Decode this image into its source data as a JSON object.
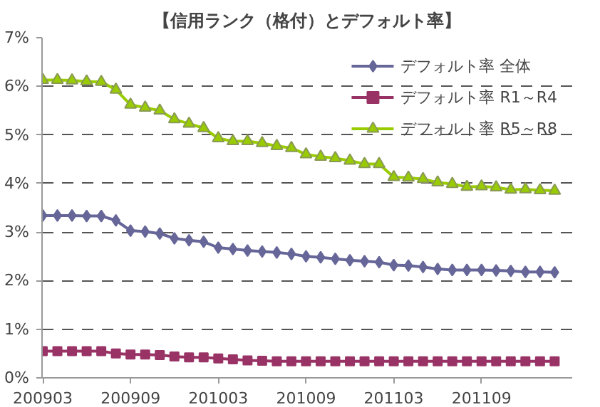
{
  "chart_data": {
    "type": "line",
    "title": "【信用ランク（格付）とデフォルト率】",
    "categories": [
      "200903",
      null,
      null,
      null,
      null,
      null,
      "200909",
      null,
      null,
      null,
      null,
      null,
      "201003",
      null,
      null,
      null,
      null,
      null,
      "201009",
      null,
      null,
      null,
      null,
      null,
      "201103",
      null,
      null,
      null,
      null,
      null,
      "201109",
      null,
      null,
      null,
      null,
      null
    ],
    "series": [
      {
        "name": "デフォルト率 全体",
        "color": "#666699",
        "marker": "diamond",
        "values": [
          3.34,
          3.34,
          3.34,
          3.33,
          3.33,
          3.24,
          3.03,
          3.01,
          2.97,
          2.87,
          2.83,
          2.8,
          2.68,
          2.65,
          2.62,
          2.6,
          2.58,
          2.55,
          2.5,
          2.48,
          2.45,
          2.42,
          2.4,
          2.38,
          2.32,
          2.31,
          2.28,
          2.24,
          2.22,
          2.22,
          2.22,
          2.21,
          2.2,
          2.18,
          2.18,
          2.17
        ]
      },
      {
        "name": "デフォルト率 R1～R4",
        "color": "#993366",
        "marker": "square",
        "values": [
          0.55,
          0.55,
          0.55,
          0.55,
          0.55,
          0.5,
          0.48,
          0.48,
          0.47,
          0.44,
          0.42,
          0.42,
          0.4,
          0.38,
          0.36,
          0.35,
          0.34,
          0.34,
          0.34,
          0.34,
          0.34,
          0.34,
          0.34,
          0.34,
          0.34,
          0.34,
          0.34,
          0.34,
          0.34,
          0.34,
          0.34,
          0.34,
          0.34,
          0.34,
          0.34,
          0.34
        ]
      },
      {
        "name": "デフォルト率 R5～R8",
        "color": "#99cc00",
        "marker": "triangle",
        "values": [
          6.13,
          6.13,
          6.12,
          6.1,
          6.09,
          5.93,
          5.62,
          5.56,
          5.5,
          5.32,
          5.23,
          5.14,
          4.93,
          4.87,
          4.87,
          4.83,
          4.77,
          4.73,
          4.6,
          4.55,
          4.52,
          4.47,
          4.4,
          4.4,
          4.13,
          4.12,
          4.09,
          4.02,
          3.99,
          3.93,
          3.94,
          3.92,
          3.87,
          3.88,
          3.86,
          3.85
        ]
      }
    ],
    "ylim": [
      0,
      7
    ],
    "yticks": [
      {
        "value": 0,
        "label": "0%"
      },
      {
        "value": 1,
        "label": "1%"
      },
      {
        "value": 2,
        "label": "2%"
      },
      {
        "value": 3,
        "label": "3%"
      },
      {
        "value": 4,
        "label": "4%"
      },
      {
        "value": 5,
        "label": "5%"
      },
      {
        "value": 6,
        "label": "6%"
      },
      {
        "value": 7,
        "label": "7%"
      }
    ],
    "grid": "y",
    "legend": "top right",
    "line_style": "solid"
  }
}
